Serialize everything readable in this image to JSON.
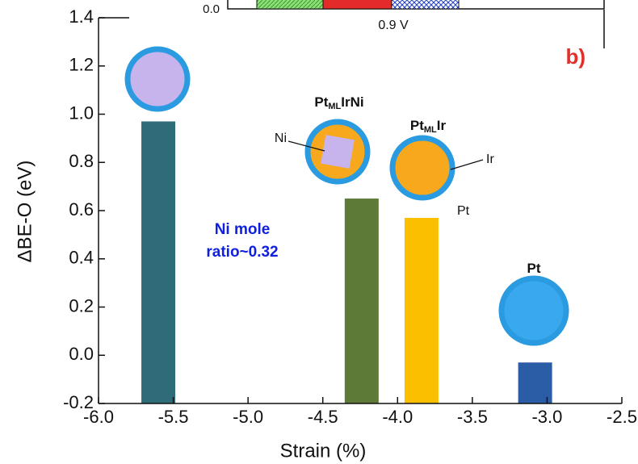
{
  "chart_data": {
    "type": "bar",
    "x": [
      -5.6,
      -4.24,
      -3.84,
      -3.08
    ],
    "values": [
      0.97,
      0.65,
      0.57,
      -0.03
    ],
    "colors": [
      "#2d6c78",
      "#5d7a37",
      "#fcbf00",
      "#2b5ca6"
    ],
    "xlabel": "Strain (%)",
    "ylabel": "ΔBE-O (eV)",
    "xlim": [
      -6.0,
      -2.5
    ],
    "xticks": [
      {
        "value": -6,
        "label": "-6.0"
      },
      -5.5,
      {
        "value": -5,
        "label": "-5.0"
      },
      -4.5,
      {
        "value": -4,
        "label": "-4.0"
      },
      -3.5,
      {
        "value": -3,
        "label": "-3.0"
      },
      -2.5
    ],
    "ylim": [
      -0.2,
      1.4
    ],
    "yticks": [
      -0.2,
      {
        "value": 0,
        "label": "0.0"
      },
      0.2,
      0.4,
      0.6,
      0.8,
      {
        "value": 1,
        "label": "1.0"
      },
      1.2,
      1.4
    ],
    "panel_label": "b)",
    "annotation": [
      "Ni mole",
      "ratio~0.32"
    ],
    "particle_labels": [
      [
        "Pt",
        "ML",
        "IrNi"
      ],
      [
        "Pt",
        "ML",
        "Ir"
      ],
      [
        "Pt"
      ]
    ],
    "callouts": [
      "Ni",
      "Ir",
      "Pt"
    ],
    "inset": {
      "y_label": "0.0",
      "x_label": "0.9 V"
    }
  }
}
